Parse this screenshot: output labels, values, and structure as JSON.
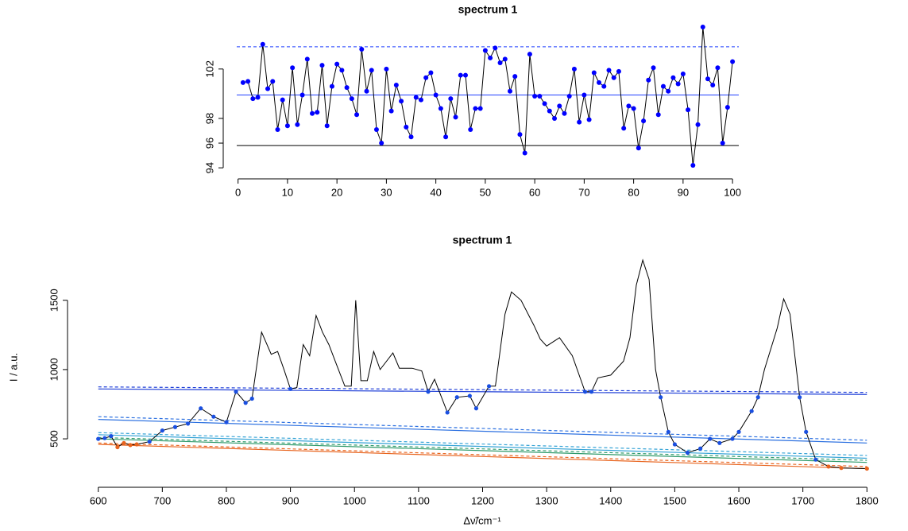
{
  "chart_data": [
    {
      "type": "line",
      "title": "spectrum 1",
      "x": [
        1,
        2,
        3,
        4,
        5,
        6,
        7,
        8,
        9,
        10,
        11,
        12,
        13,
        14,
        15,
        16,
        17,
        18,
        19,
        20,
        21,
        22,
        23,
        24,
        25,
        26,
        27,
        28,
        29,
        30,
        31,
        32,
        33,
        34,
        35,
        36,
        37,
        38,
        39,
        40,
        41,
        42,
        43,
        44,
        45,
        46,
        47,
        48,
        49,
        50,
        51,
        52,
        53,
        54,
        55,
        56,
        57,
        58,
        59,
        60,
        61,
        62,
        63,
        64,
        65,
        66,
        67,
        68,
        69,
        70,
        71,
        72,
        73,
        74,
        75,
        76,
        77,
        78,
        79,
        80,
        81,
        82,
        83,
        84,
        85,
        86,
        87,
        88,
        89,
        90,
        91,
        92,
        93,
        94,
        95,
        96,
        97,
        98,
        99,
        100
      ],
      "series": [
        {
          "color": "#000000",
          "marker_color": "#0000ff",
          "values": [
            100.9,
            101.0,
            99.6,
            99.7,
            104.0,
            100.4,
            101.0,
            97.1,
            99.5,
            97.4,
            102.1,
            97.5,
            99.9,
            102.8,
            98.4,
            98.5,
            102.3,
            97.4,
            100.6,
            102.4,
            101.9,
            100.5,
            99.6,
            98.3,
            103.6,
            100.2,
            101.9,
            97.1,
            96.0,
            102.0,
            98.6,
            100.7,
            99.4,
            97.3,
            96.5,
            99.7,
            99.5,
            101.3,
            101.7,
            99.9,
            98.8,
            96.5,
            99.6,
            98.1,
            101.5,
            101.5,
            97.1,
            98.8,
            98.8,
            103.5,
            102.9,
            103.7,
            102.5,
            102.8,
            100.2,
            101.4,
            96.7,
            95.2,
            103.2,
            99.8,
            99.8,
            99.2,
            98.6,
            98.0,
            99.0,
            98.4,
            99.8,
            102.0,
            97.7,
            99.9,
            97.9,
            101.7,
            100.9,
            100.6,
            101.9,
            101.3,
            101.8,
            97.2,
            99.0,
            98.8,
            95.6,
            97.8,
            101.1,
            102.1,
            98.3,
            100.6,
            100.2,
            101.3,
            100.8,
            101.6,
            98.7,
            94.2,
            97.5,
            105.4,
            101.2,
            100.7,
            102.1,
            96.0,
            98.9,
            102.6
          ]
        }
      ],
      "hlines": [
        {
          "y": 95.8,
          "color": "#000000",
          "dash": false
        },
        {
          "y": 99.9,
          "color": "#2040ff",
          "dash": false
        },
        {
          "y": 103.8,
          "color": "#2040ff",
          "dash": true
        }
      ],
      "xlim": [
        -3,
        104
      ],
      "ylim": [
        93.75,
        105.85
      ],
      "xticks": [
        0,
        10,
        20,
        30,
        40,
        50,
        60,
        70,
        80,
        90,
        100
      ],
      "yticks": [
        94,
        96,
        98,
        102
      ]
    },
    {
      "type": "line",
      "title": "spectrum 1",
      "x_label": "Δν̃/cm⁻¹",
      "y_label": "I / a.u.",
      "x": [
        600,
        610,
        620,
        630,
        640,
        650,
        660,
        680,
        700,
        720,
        740,
        760,
        780,
        800,
        815,
        830,
        840,
        855,
        870,
        880,
        890,
        900,
        910,
        920,
        930,
        940,
        950,
        960,
        970,
        985,
        995,
        1002,
        1010,
        1020,
        1030,
        1040,
        1060,
        1070,
        1090,
        1105,
        1115,
        1125,
        1145,
        1160,
        1180,
        1190,
        1210,
        1220,
        1235,
        1245,
        1260,
        1280,
        1290,
        1300,
        1320,
        1340,
        1360,
        1370,
        1380,
        1400,
        1420,
        1430,
        1440,
        1450,
        1460,
        1470,
        1478,
        1490,
        1500,
        1520,
        1540,
        1555,
        1570,
        1590,
        1600,
        1620,
        1630,
        1640,
        1660,
        1670,
        1680,
        1695,
        1705,
        1720,
        1740,
        1760,
        1800
      ],
      "series": [
        {
          "color": "#000000",
          "values": [
            500,
            505,
            520,
            440,
            470,
            455,
            460,
            480,
            560,
            585,
            610,
            720,
            660,
            620,
            840,
            760,
            790,
            1270,
            1110,
            1130,
            1000,
            860,
            870,
            1180,
            1100,
            1390,
            1270,
            1180,
            1060,
            880,
            880,
            1500,
            920,
            920,
            1130,
            1000,
            1120,
            1010,
            1010,
            990,
            840,
            930,
            690,
            800,
            810,
            720,
            880,
            880,
            1400,
            1560,
            1500,
            1320,
            1220,
            1170,
            1230,
            1100,
            840,
            840,
            940,
            960,
            1060,
            1230,
            1610,
            1790,
            1650,
            1000,
            800,
            550,
            460,
            400,
            430,
            500,
            470,
            500,
            550,
            700,
            800,
            1000,
            1300,
            1510,
            1400,
            800,
            550,
            350,
            300,
            290,
            285
          ]
        }
      ],
      "points": [
        {
          "color": "#1a4fe0",
          "x": [
            600,
            610,
            620,
            680,
            700,
            720,
            740,
            760,
            780,
            800,
            815,
            830,
            840,
            900,
            1115,
            1145,
            1160,
            1180,
            1190,
            1210,
            1360,
            1370,
            1478,
            1490,
            1500,
            1520,
            1540,
            1555,
            1570,
            1590,
            1600,
            1620,
            1630,
            1695,
            1705,
            1720
          ],
          "y": [
            500,
            505,
            520,
            480,
            560,
            585,
            610,
            720,
            660,
            620,
            840,
            760,
            790,
            860,
            840,
            690,
            800,
            810,
            720,
            880,
            840,
            840,
            800,
            550,
            460,
            400,
            430,
            500,
            470,
            500,
            550,
            700,
            800,
            800,
            550,
            350
          ]
        },
        {
          "color": "#e8641e",
          "x": [
            630,
            640,
            650,
            660,
            1740,
            1760,
            1800
          ],
          "y": [
            440,
            470,
            455,
            460,
            300,
            290,
            285
          ]
        }
      ],
      "baselines": [
        {
          "x": [
            600,
            1800
          ],
          "y": [
            860,
            820
          ],
          "color": "#1f3fd8",
          "dash": false
        },
        {
          "x": [
            600,
            1800
          ],
          "y": [
            875,
            835
          ],
          "color": "#1f3fd8",
          "dash": true
        },
        {
          "x": [
            600,
            1800
          ],
          "y": [
            640,
            470
          ],
          "color": "#2a6fe0",
          "dash": false
        },
        {
          "x": [
            600,
            1800
          ],
          "y": [
            660,
            490
          ],
          "color": "#2a6fe0",
          "dash": true
        },
        {
          "x": [
            600,
            1800
          ],
          "y": [
            530,
            360
          ],
          "color": "#35a3d6",
          "dash": false
        },
        {
          "x": [
            600,
            1800
          ],
          "y": [
            545,
            380
          ],
          "color": "#35a3d6",
          "dash": true
        },
        {
          "x": [
            600,
            1800
          ],
          "y": [
            500,
            330
          ],
          "color": "#2e9a6a",
          "dash": false
        },
        {
          "x": [
            600,
            1800
          ],
          "y": [
            510,
            345
          ],
          "color": "#2e9a6a",
          "dash": true
        },
        {
          "x": [
            600,
            1800
          ],
          "y": [
            460,
            285
          ],
          "color": "#e8641e",
          "dash": false
        },
        {
          "x": [
            600,
            1800
          ],
          "y": [
            470,
            300
          ],
          "color": "#e8641e",
          "dash": true
        }
      ],
      "xlim": [
        552,
        1848
      ],
      "ylim": [
        225,
        1860
      ],
      "xticks": [
        600,
        700,
        800,
        900,
        1000,
        1100,
        1200,
        1300,
        1400,
        1500,
        1600,
        1700,
        1800
      ],
      "yticks": [
        500,
        1000,
        1500
      ]
    }
  ]
}
